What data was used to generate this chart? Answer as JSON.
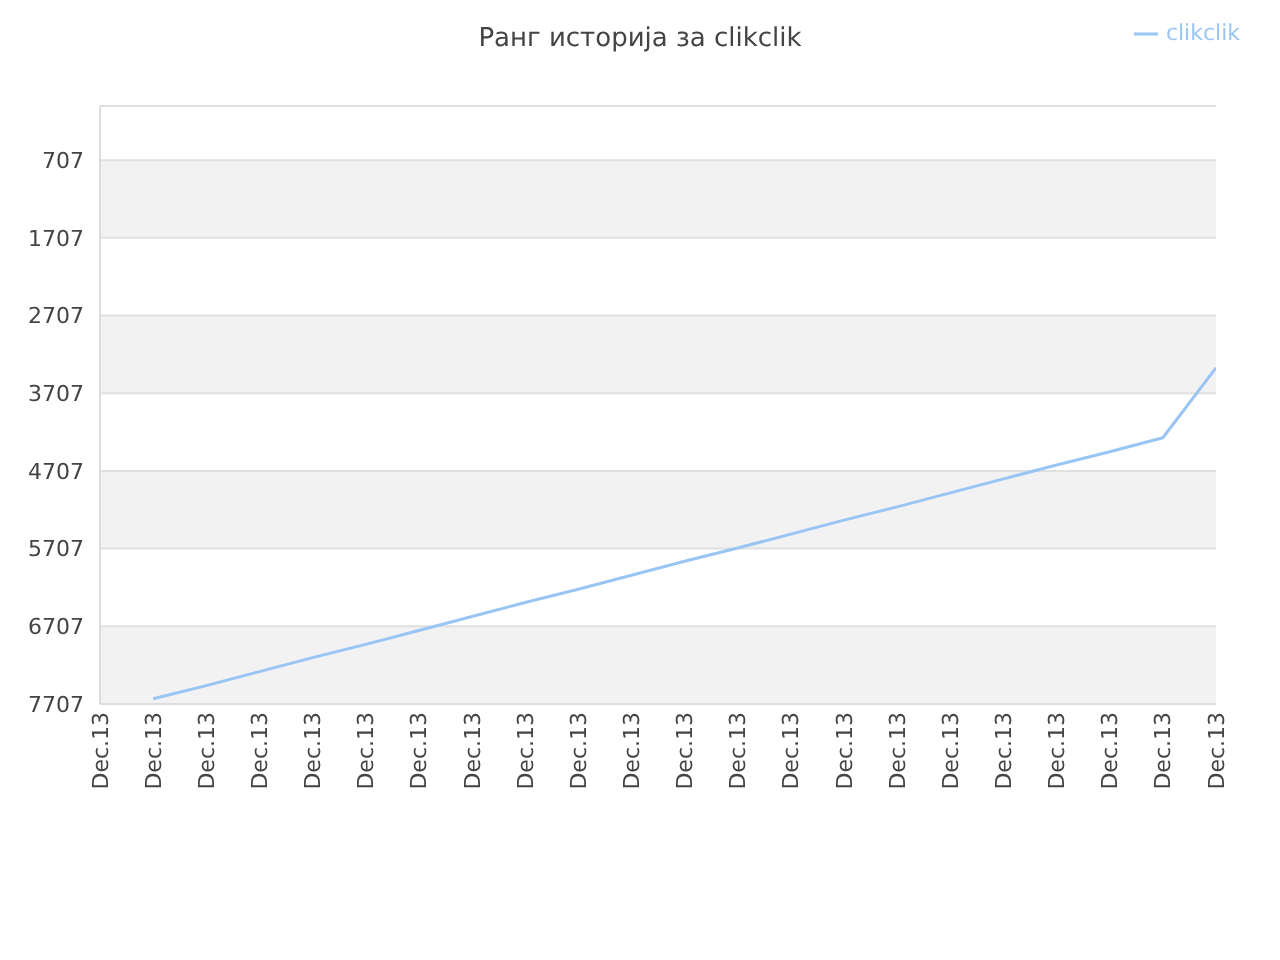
{
  "chart_data": {
    "type": "line",
    "title": "Ранг историја за clikclik",
    "categories": [
      "Dec.13",
      "Dec.13",
      "Dec.13",
      "Dec.13",
      "Dec.13",
      "Dec.13",
      "Dec.13",
      "Dec.13",
      "Dec.13",
      "Dec.13",
      "Dec.13",
      "Dec.13",
      "Dec.13",
      "Dec.13",
      "Dec.13",
      "Dec.13",
      "Dec.13",
      "Dec.13",
      "Dec.13",
      "Dec.13",
      "Dec.13",
      "Dec.13"
    ],
    "series": [
      {
        "name": "clikclik",
        "color": "#99c5f5",
        "values": [
          null,
          7640,
          7470,
          7290,
          7110,
          6940,
          6760,
          6580,
          6400,
          6230,
          6050,
          5870,
          5700,
          5520,
          5340,
          5170,
          4990,
          4810,
          4630,
          4460,
          4280,
          3380
        ]
      }
    ],
    "ylim": [
      7707,
      10
    ],
    "yticks": [
      707,
      1707,
      2707,
      3707,
      4707,
      5707,
      6707,
      7707
    ],
    "grid": "y",
    "legend": "top right",
    "marker": "none",
    "line_style": "solid"
  }
}
